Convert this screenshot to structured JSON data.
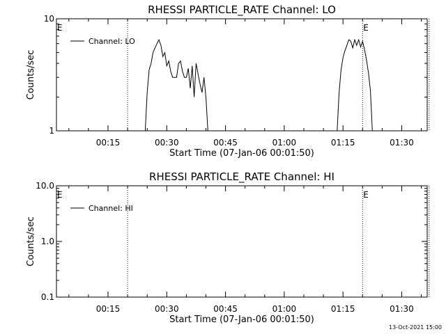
{
  "page": {
    "timestamp": "13-Oct-2021 15:00"
  },
  "chart_data": [
    {
      "type": "line",
      "title": "RHESSI PARTICLE_RATE Channel: LO",
      "xlabel": "Start Time (07-Jan-06 00:01:50)",
      "ylabel": "Counts/sec",
      "yscale": "log",
      "ylim": [
        1,
        10
      ],
      "xlim_min": [
        1.83,
        96.5
      ],
      "ytick_labels": [
        "1",
        "10"
      ],
      "ytick_values": [
        1,
        10
      ],
      "xtick_labels": [
        "00:15",
        "00:30",
        "00:45",
        "01:00",
        "01:15",
        "01:30"
      ],
      "xtick_values": [
        15,
        30,
        45,
        60,
        75,
        90
      ],
      "legend": {
        "label": "Channel: LO",
        "placement": "top-left"
      },
      "event_markers": [
        {
          "label": "E",
          "x_min": 1.83
        },
        {
          "label": "",
          "x_min": 20
        },
        {
          "label": "E",
          "x_min": 80
        },
        {
          "label": "",
          "x_min": 97
        }
      ],
      "series": [
        {
          "name": "Channel: LO",
          "segments": [
            [
              [
                24.5,
                1
              ],
              [
                25,
                2.2
              ],
              [
                25.5,
                3.5
              ],
              [
                26,
                4
              ],
              [
                26.5,
                5
              ],
              [
                27,
                5.5
              ],
              [
                27.5,
                6
              ],
              [
                28,
                6.5
              ],
              [
                28.5,
                5.8
              ],
              [
                29,
                4.6
              ],
              [
                29.5,
                5
              ],
              [
                30,
                3.8
              ],
              [
                30.5,
                4.2
              ],
              [
                31,
                3.4
              ],
              [
                31.5,
                3
              ],
              [
                32,
                3
              ],
              [
                32.5,
                3
              ],
              [
                33,
                4
              ],
              [
                33.5,
                4.2
              ],
              [
                34,
                3.4
              ],
              [
                34.5,
                3
              ],
              [
                35,
                3
              ],
              [
                35.5,
                3.6
              ],
              [
                36,
                2.4
              ],
              [
                36.5,
                3.8
              ],
              [
                37,
                2
              ],
              [
                37.5,
                4
              ],
              [
                38,
                3.2
              ],
              [
                38.5,
                2.6
              ],
              [
                39,
                2.2
              ],
              [
                39.5,
                3
              ],
              [
                40,
                2
              ],
              [
                40.5,
                1
              ]
            ],
            [
              [
                73.5,
                1
              ],
              [
                74,
                2.2
              ],
              [
                74.5,
                3.5
              ],
              [
                75,
                4.5
              ],
              [
                75.5,
                5.2
              ],
              [
                76,
                5.8
              ],
              [
                76.5,
                6.5
              ],
              [
                77,
                6.3
              ],
              [
                77.5,
                5.5
              ],
              [
                78,
                6.5
              ],
              [
                78.5,
                5.8
              ],
              [
                79,
                6.5
              ],
              [
                79.5,
                5.6
              ],
              [
                80,
                6.3
              ],
              [
                80.5,
                5.3
              ],
              [
                81,
                4.3
              ],
              [
                81.5,
                3.3
              ],
              [
                82,
                2.3
              ],
              [
                82.5,
                1
              ]
            ]
          ]
        }
      ]
    },
    {
      "type": "line",
      "title": "RHESSI PARTICLE_RATE Channel: HI",
      "xlabel": "Start Time (07-Jan-06 00:01:50)",
      "ylabel": "Counts/sec",
      "yscale": "log",
      "ylim": [
        0.1,
        10
      ],
      "xlim_min": [
        1.83,
        96.5
      ],
      "ytick_labels": [
        "0.1",
        "1.0",
        "10.0"
      ],
      "ytick_values": [
        0.1,
        1,
        10
      ],
      "xtick_labels": [
        "00:15",
        "00:30",
        "00:45",
        "01:00",
        "01:15",
        "01:30"
      ],
      "xtick_values": [
        15,
        30,
        45,
        60,
        75,
        90
      ],
      "legend": {
        "label": "Channel: HI",
        "placement": "top-left"
      },
      "event_markers": [
        {
          "label": "E",
          "x_min": 1.83
        },
        {
          "label": "",
          "x_min": 20
        },
        {
          "label": "E",
          "x_min": 80
        },
        {
          "label": "",
          "x_min": 97
        }
      ],
      "series": [
        {
          "name": "Channel: HI",
          "segments": []
        }
      ]
    }
  ]
}
